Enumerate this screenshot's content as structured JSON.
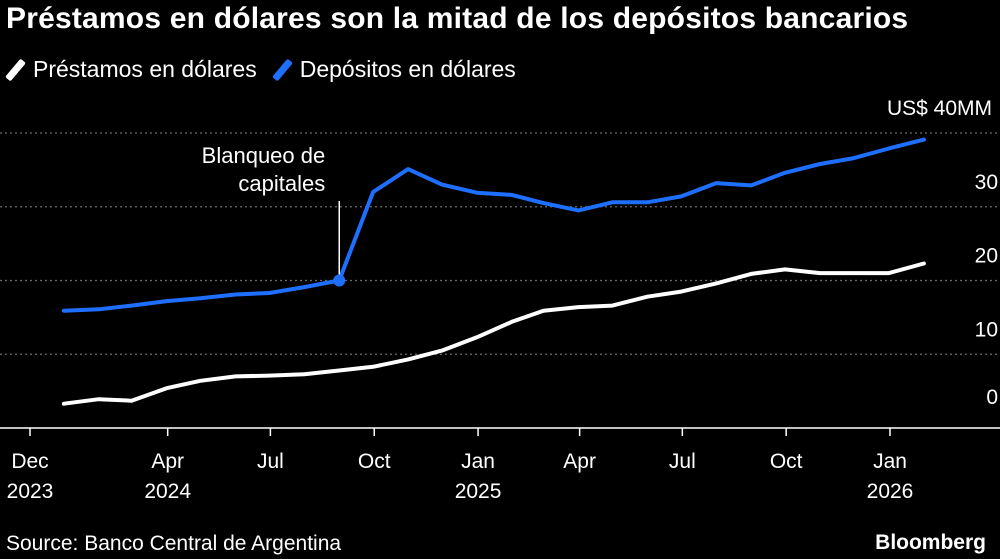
{
  "title": "Préstamos en dólares son la mitad de los depósitos bancarios",
  "source": "Source: Banco Central de Argentina",
  "brand": "Bloomberg",
  "colors": {
    "background": "#000000",
    "loans": "#ffffff",
    "deposits": "#1f6fff",
    "grid": "#6b6b6b",
    "text": "#ffffff"
  },
  "chart_data": {
    "type": "line",
    "unit_label": "US$ 40MM",
    "y_ticks": [
      "0",
      "10",
      "20",
      "30"
    ],
    "ylim": [
      0,
      40
    ],
    "grid": true,
    "legend_position": "top-left",
    "x_ticks": [
      {
        "date": "2023-12-01",
        "label1": "Dec",
        "label2": "2023"
      },
      {
        "date": "2024-04-01",
        "label1": "Apr",
        "label2": "2024"
      },
      {
        "date": "2024-07-01",
        "label1": "Jul",
        "label2": ""
      },
      {
        "date": "2024-10-01",
        "label1": "Oct",
        "label2": ""
      },
      {
        "date": "2025-01-01",
        "label1": "Jan",
        "label2": "2025"
      },
      {
        "date": "2025-04-01",
        "label1": "Apr",
        "label2": ""
      },
      {
        "date": "2025-07-01",
        "label1": "Jul",
        "label2": ""
      },
      {
        "date": "2025-10-01",
        "label1": "Oct",
        "label2": ""
      },
      {
        "date": "2026-01-01",
        "label1": "Jan",
        "label2": "2026"
      }
    ],
    "annotation": {
      "label_line1": "Blanqueo de",
      "label_line2": "capitales",
      "date": "2024-08-31",
      "series": "Depósitos en dólares"
    },
    "series": [
      {
        "name": "Préstamos en dólares",
        "color": "#ffffff",
        "x": [
          "2023-12-31",
          "2024-01-31",
          "2024-02-29",
          "2024-03-31",
          "2024-04-30",
          "2024-05-31",
          "2024-06-30",
          "2024-07-31",
          "2024-08-31",
          "2024-09-30",
          "2024-10-31",
          "2024-11-30",
          "2024-12-31",
          "2025-01-31",
          "2025-02-28",
          "2025-03-31",
          "2025-04-30",
          "2025-05-31",
          "2025-06-30",
          "2025-07-31",
          "2025-08-31",
          "2025-09-30",
          "2025-10-31",
          "2025-11-30",
          "2025-12-31",
          "2026-01-31"
        ],
        "values": [
          3.3,
          3.9,
          3.7,
          5.4,
          6.4,
          7.0,
          7.1,
          7.3,
          7.8,
          8.3,
          9.3,
          10.5,
          12.3,
          14.4,
          15.9,
          16.4,
          16.6,
          17.8,
          18.5,
          19.6,
          20.9,
          21.5,
          21.0,
          21.0,
          21.0,
          22.3
        ]
      },
      {
        "name": "Depósitos en dólares",
        "color": "#1f6fff",
        "x": [
          "2023-12-31",
          "2024-01-31",
          "2024-02-29",
          "2024-03-31",
          "2024-04-30",
          "2024-05-31",
          "2024-06-30",
          "2024-07-31",
          "2024-08-31",
          "2024-09-30",
          "2024-10-31",
          "2024-11-30",
          "2024-12-31",
          "2025-01-31",
          "2025-02-28",
          "2025-03-31",
          "2025-04-30",
          "2025-05-31",
          "2025-06-30",
          "2025-07-31",
          "2025-08-31",
          "2025-09-30",
          "2025-10-31",
          "2025-11-30",
          "2025-12-31",
          "2026-01-31"
        ],
        "values": [
          15.9,
          16.1,
          16.6,
          17.2,
          17.6,
          18.1,
          18.3,
          19.1,
          20.0,
          32.0,
          35.1,
          33.0,
          31.9,
          31.6,
          30.5,
          29.5,
          30.6,
          30.6,
          31.4,
          33.2,
          32.9,
          34.6,
          35.8,
          36.6,
          37.9,
          39.1
        ]
      }
    ]
  }
}
